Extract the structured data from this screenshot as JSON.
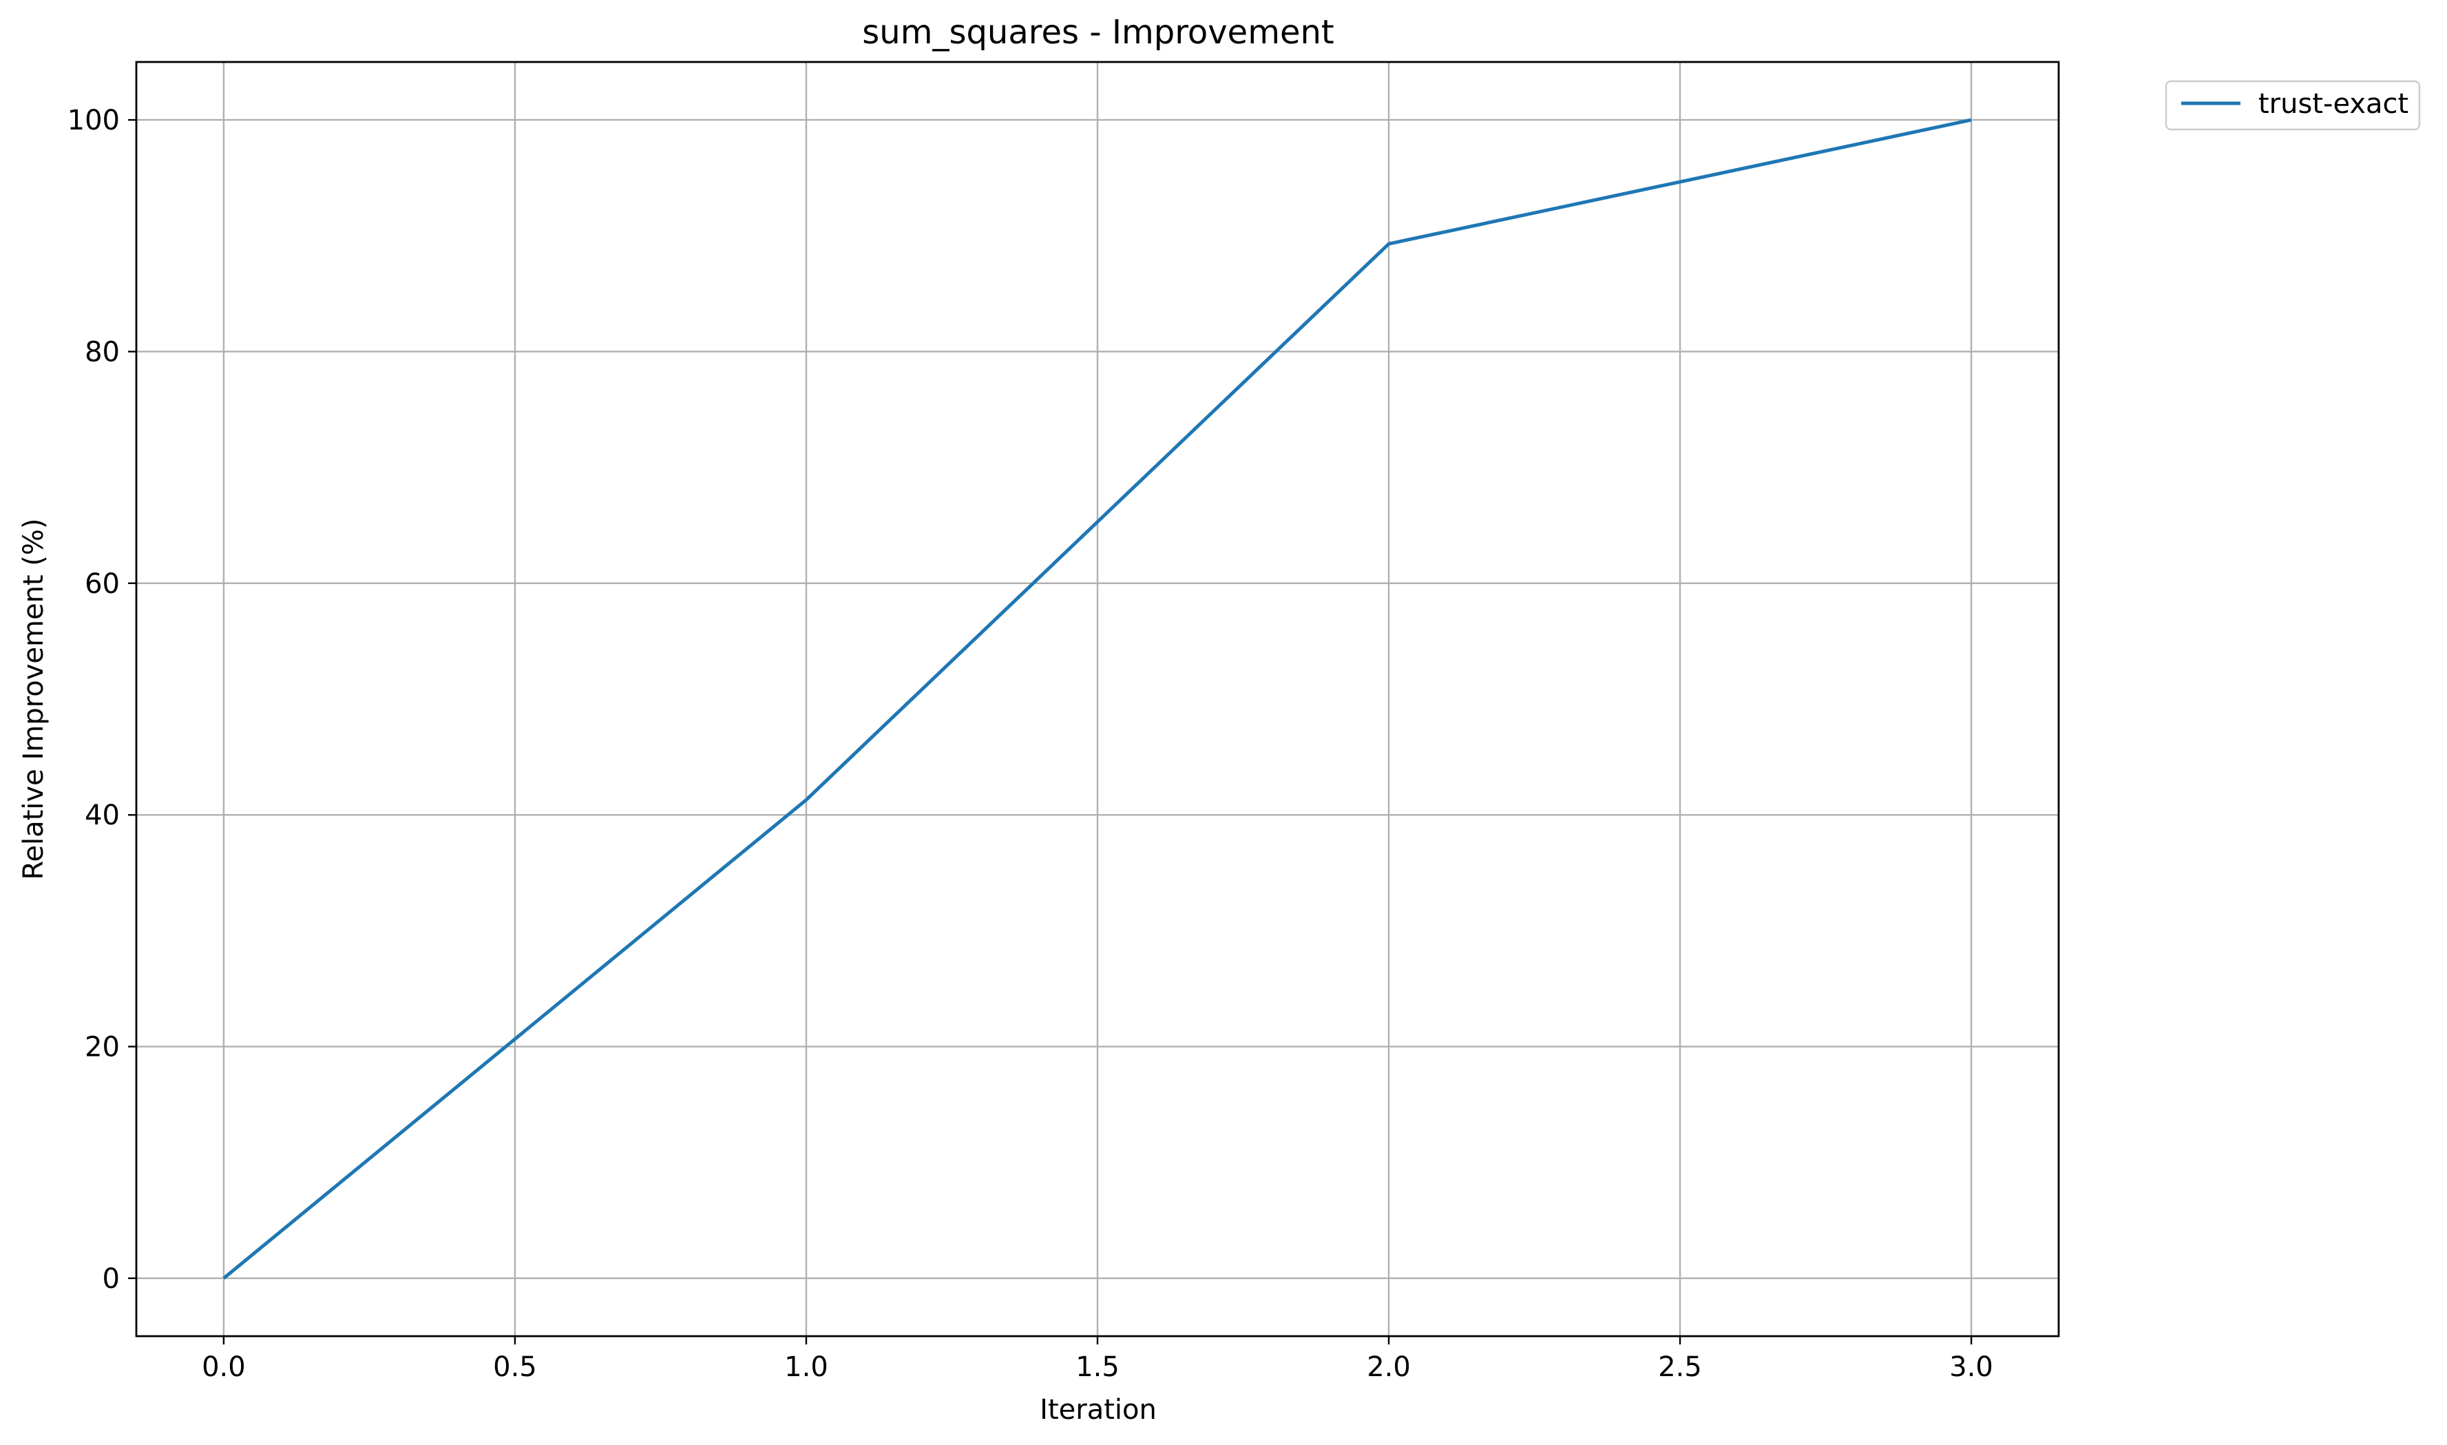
{
  "chart_data": {
    "type": "line",
    "title": "sum_squares - Improvement",
    "xlabel": "Iteration",
    "ylabel": "Relative Improvement (%)",
    "xlim": [
      -0.15,
      3.15
    ],
    "ylim": [
      -5,
      105
    ],
    "xticks": [
      0.0,
      0.5,
      1.0,
      1.5,
      2.0,
      2.5,
      3.0
    ],
    "xtick_labels": [
      "0.0",
      "0.5",
      "1.0",
      "1.5",
      "2.0",
      "2.5",
      "3.0"
    ],
    "yticks": [
      0,
      20,
      40,
      60,
      80,
      100
    ],
    "ytick_labels": [
      "0",
      "20",
      "40",
      "60",
      "80",
      "100"
    ],
    "grid": true,
    "legend_placement": "outside-top-right",
    "series": [
      {
        "name": "trust-exact",
        "color": "#1f77b4",
        "x": [
          0,
          1,
          2,
          3
        ],
        "y": [
          0,
          41.3,
          89.3,
          100
        ]
      }
    ]
  }
}
